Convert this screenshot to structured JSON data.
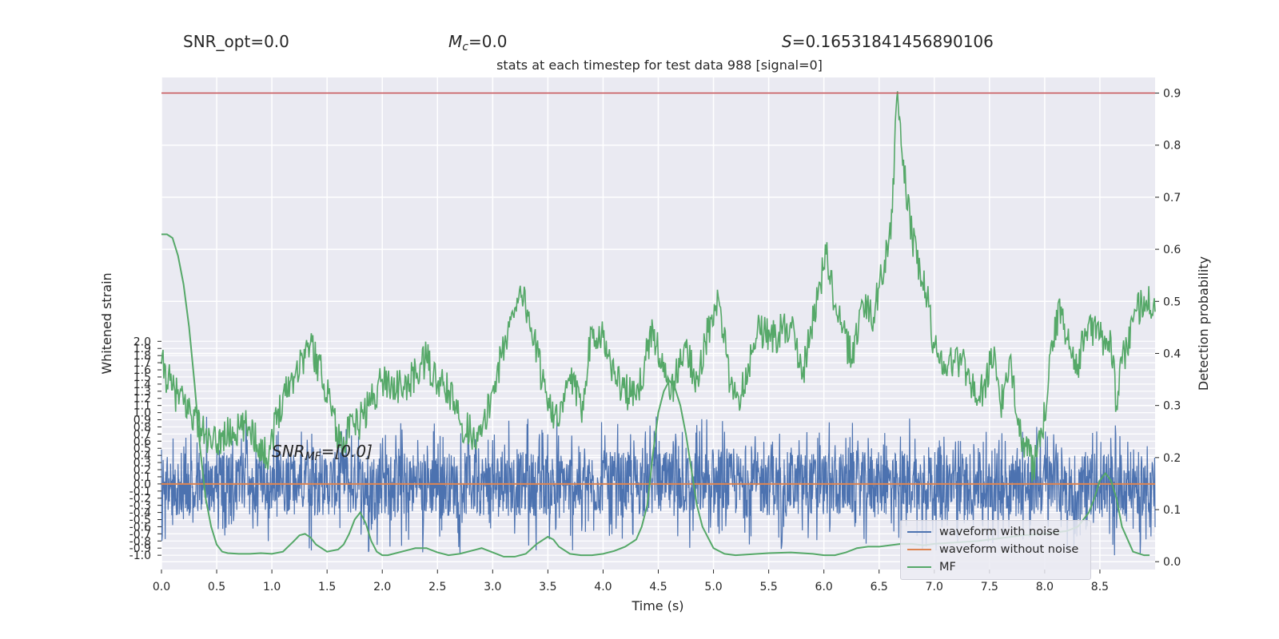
{
  "header": {
    "snr_opt": "SNR_opt=0.0",
    "mc_symbol": "M",
    "mc_sub": "c",
    "mc_value": "=0.0",
    "s_symbol": "S",
    "s_value": "=0.16531841456890106"
  },
  "annotation": {
    "snr_mf_symbol": "SNR",
    "snr_mf_sub": "MF",
    "snr_mf_value": "=[0.0]"
  },
  "legend": {
    "items": [
      {
        "label": "waveform with noise",
        "color": "#4c72b0"
      },
      {
        "label": "waveform without noise",
        "color": "#dd8452"
      },
      {
        "label": "MF",
        "color": "#55a868"
      }
    ]
  },
  "colors": {
    "plot_bg": "#eaeaf2",
    "grid": "#ffffff",
    "threshold": "#c44e52"
  },
  "chart_data": {
    "type": "line",
    "title": "stats at each timestep for test data 988 [signal=0]",
    "xlabel": "Time (s)",
    "ylabel_left": "Whitened strain",
    "ylabel_right": "Detection probability",
    "xlim": [
      0,
      9
    ],
    "ylim_left": [
      -1.2,
      5.7
    ],
    "ylim_right": [
      -0.015,
      0.93
    ],
    "x_ticks": [
      "0.0",
      "0.5",
      "1.0",
      "1.5",
      "2.0",
      "2.5",
      "3.0",
      "3.5",
      "4.0",
      "4.5",
      "5.0",
      "5.5",
      "6.0",
      "6.5",
      "7.0",
      "7.5",
      "8.0",
      "8.5"
    ],
    "left_ticks": [
      "-1.0",
      "-0.9",
      "-0.8",
      "-0.7",
      "-0.6",
      "-0.5",
      "-0.4",
      "-0.3",
      "-0.2",
      "-0.1",
      "0.0",
      "0.1",
      "0.2",
      "0.3",
      "0.4",
      "0.5",
      "0.6",
      "0.7",
      "0.8",
      "0.9",
      "1.0",
      "1.1",
      "1.2",
      "1.3",
      "1.4",
      "1.5",
      "1.6",
      "1.7",
      "1.8",
      "1.9",
      "2.0"
    ],
    "right_ticks": [
      "0.0",
      "0.1",
      "0.2",
      "0.3",
      "0.4",
      "0.5",
      "0.6",
      "0.7",
      "0.8",
      "0.9"
    ],
    "grid": true,
    "legend_position": "lower-right",
    "threshold": {
      "value": 0.9,
      "axis": "right"
    },
    "series": [
      {
        "name": "waveform with noise",
        "axis": "left",
        "color": "#4c72b0",
        "kind": "noise",
        "band": [
          -0.45,
          0.45
        ],
        "extreme_range": [
          -1.0,
          0.95
        ]
      },
      {
        "name": "waveform without noise",
        "axis": "left",
        "color": "#dd8452",
        "x": [
          0,
          9
        ],
        "y": [
          0.0,
          0.0
        ]
      },
      {
        "name": "MF",
        "axis": "left",
        "color": "#55a868",
        "x": [
          0.0,
          0.05,
          0.1,
          0.15,
          0.2,
          0.25,
          0.3,
          0.35,
          0.4,
          0.45,
          0.5,
          0.55,
          0.6,
          0.7,
          0.8,
          0.9,
          1.0,
          1.1,
          1.2,
          1.25,
          1.3,
          1.35,
          1.4,
          1.5,
          1.6,
          1.65,
          1.7,
          1.75,
          1.8,
          1.85,
          1.9,
          1.95,
          2.0,
          2.05,
          2.1,
          2.2,
          2.3,
          2.4,
          2.5,
          2.6,
          2.7,
          2.8,
          2.9,
          3.0,
          3.1,
          3.2,
          3.3,
          3.4,
          3.5,
          3.55,
          3.6,
          3.7,
          3.8,
          3.9,
          4.0,
          4.1,
          4.2,
          4.3,
          4.35,
          4.4,
          4.45,
          4.5,
          4.55,
          4.6,
          4.65,
          4.7,
          4.75,
          4.8,
          4.85,
          4.9,
          5.0,
          5.1,
          5.2,
          5.3,
          5.5,
          5.7,
          5.9,
          6.0,
          6.1,
          6.2,
          6.3,
          6.4,
          6.5,
          6.6,
          6.7,
          6.8,
          6.9,
          7.0,
          7.2,
          7.4,
          7.6,
          7.8,
          8.0,
          8.2,
          8.3,
          8.4,
          8.45,
          8.5,
          8.55,
          8.6,
          8.65,
          8.7,
          8.8,
          8.9,
          8.95
        ],
        "y": [
          3.5,
          3.5,
          3.45,
          3.2,
          2.8,
          2.2,
          1.4,
          0.5,
          -0.2,
          -0.6,
          -0.85,
          -0.95,
          -0.97,
          -0.98,
          -0.98,
          -0.97,
          -0.98,
          -0.95,
          -0.8,
          -0.72,
          -0.7,
          -0.75,
          -0.85,
          -0.95,
          -0.92,
          -0.85,
          -0.7,
          -0.5,
          -0.4,
          -0.55,
          -0.8,
          -0.95,
          -1.0,
          -1.0,
          -0.98,
          -0.94,
          -0.9,
          -0.9,
          -0.96,
          -1.0,
          -0.98,
          -0.94,
          -0.9,
          -0.96,
          -1.02,
          -1.02,
          -0.98,
          -0.84,
          -0.74,
          -0.78,
          -0.88,
          -0.98,
          -1.0,
          -1.0,
          -0.98,
          -0.94,
          -0.88,
          -0.78,
          -0.6,
          -0.3,
          0.4,
          1.0,
          1.3,
          1.45,
          1.35,
          1.1,
          0.7,
          0.2,
          -0.3,
          -0.6,
          -0.9,
          -0.98,
          -1.0,
          -0.99,
          -0.97,
          -0.96,
          -0.98,
          -1.0,
          -1.0,
          -0.96,
          -0.9,
          -0.88,
          -0.88,
          -0.86,
          -0.84,
          -0.84,
          -0.86,
          -0.84,
          -0.82,
          -0.8,
          -0.76,
          -0.72,
          -0.7,
          -0.66,
          -0.6,
          -0.4,
          -0.2,
          0.05,
          0.15,
          0.05,
          -0.2,
          -0.6,
          -0.95,
          -1.0,
          -1.0
        ]
      },
      {
        "name": "Detection probability",
        "axis": "right",
        "color": "#55a868",
        "x": [
          0.0,
          0.1,
          0.3,
          0.45,
          0.55,
          0.8,
          0.95,
          1.1,
          1.35,
          1.45,
          1.55,
          1.6,
          1.65,
          1.8,
          2.0,
          2.2,
          2.4,
          2.5,
          2.6,
          2.7,
          2.8,
          2.9,
          3.0,
          3.15,
          3.25,
          3.35,
          3.45,
          3.6,
          3.7,
          3.8,
          3.9,
          4.0,
          4.1,
          4.2,
          4.3,
          4.45,
          4.6,
          4.75,
          4.85,
          4.95,
          5.05,
          5.15,
          5.25,
          5.4,
          5.55,
          5.7,
          5.8,
          5.95,
          6.02,
          6.1,
          6.25,
          6.35,
          6.45,
          6.55,
          6.62,
          6.66,
          6.7,
          6.8,
          6.95,
          7.0,
          7.1,
          7.25,
          7.4,
          7.55,
          7.6,
          7.7,
          7.8,
          7.9,
          7.98,
          8.05,
          8.15,
          8.2,
          8.3,
          8.4,
          8.5,
          8.6,
          8.65,
          8.7,
          8.8,
          8.9,
          9.0
        ],
        "y": [
          0.38,
          0.33,
          0.28,
          0.22,
          0.24,
          0.26,
          0.2,
          0.32,
          0.42,
          0.36,
          0.3,
          0.23,
          0.24,
          0.27,
          0.35,
          0.33,
          0.39,
          0.34,
          0.33,
          0.27,
          0.25,
          0.24,
          0.33,
          0.45,
          0.53,
          0.45,
          0.35,
          0.26,
          0.36,
          0.29,
          0.45,
          0.43,
          0.36,
          0.33,
          0.31,
          0.45,
          0.32,
          0.41,
          0.35,
          0.44,
          0.5,
          0.34,
          0.32,
          0.45,
          0.43,
          0.46,
          0.35,
          0.52,
          0.59,
          0.49,
          0.39,
          0.5,
          0.47,
          0.58,
          0.67,
          0.89,
          0.8,
          0.62,
          0.49,
          0.41,
          0.38,
          0.39,
          0.31,
          0.4,
          0.3,
          0.37,
          0.23,
          0.18,
          0.24,
          0.4,
          0.49,
          0.43,
          0.38,
          0.46,
          0.43,
          0.43,
          0.3,
          0.38,
          0.46,
          0.51,
          0.48
        ]
      }
    ]
  }
}
